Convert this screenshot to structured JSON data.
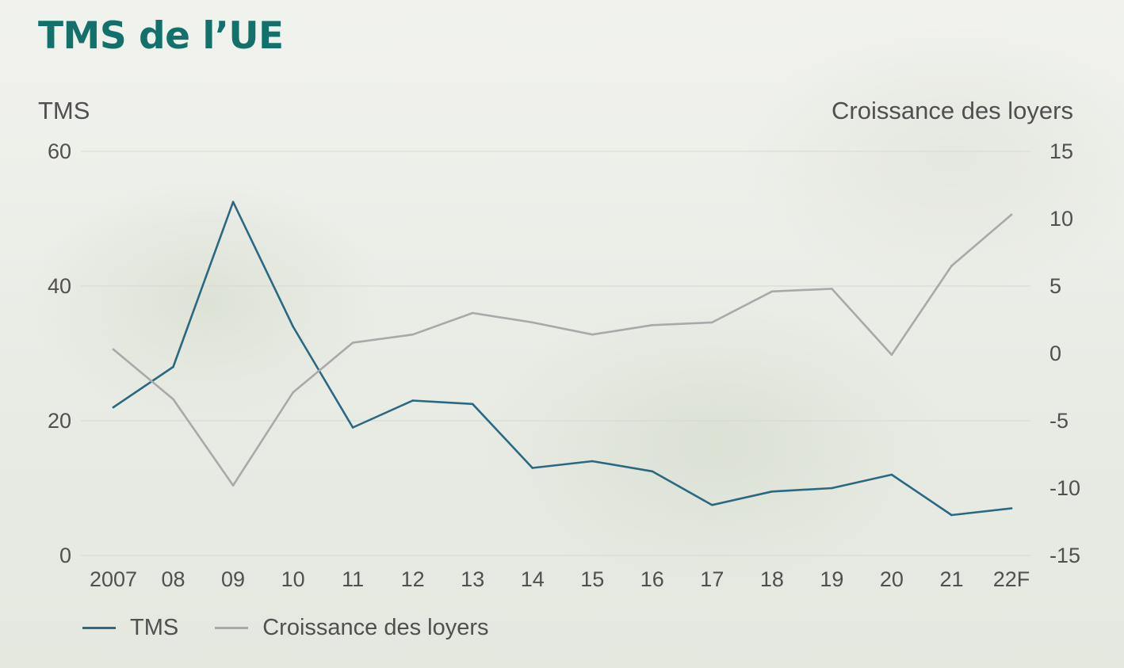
{
  "title": "TMS de l’UE",
  "colors": {
    "tms": "#2b6982",
    "rent": "#a9a9a9",
    "title": "#13716b",
    "grid": "#d6d8d2",
    "text": "#505050"
  },
  "chart_data": {
    "type": "line",
    "title": "TMS de l’UE",
    "categories": [
      "2007",
      "08",
      "09",
      "10",
      "11",
      "12",
      "13",
      "14",
      "15",
      "16",
      "17",
      "18",
      "19",
      "20",
      "21",
      "22F"
    ],
    "left_axis": {
      "label": "TMS",
      "range": [
        0,
        60
      ],
      "ticks": [
        "0",
        "20",
        "40",
        "60"
      ]
    },
    "right_axis": {
      "label": "Croissance des loyers",
      "range": [
        -15,
        15
      ],
      "ticks": [
        "-15",
        "-10",
        "-5",
        "0",
        "5",
        "10",
        "15"
      ]
    },
    "grid": true,
    "legend_placement": "bottom-left",
    "series": [
      {
        "name": "TMS",
        "axis": "left",
        "values": [
          22,
          28,
          52.5,
          34,
          19,
          23,
          22.5,
          13,
          14,
          12.5,
          7.5,
          9.5,
          10,
          12,
          6,
          7
        ]
      },
      {
        "name": "Croissance des loyers",
        "axis": "right",
        "values": [
          0.3,
          -3.4,
          -9.8,
          -2.9,
          0.8,
          1.4,
          3.0,
          2.3,
          1.4,
          2.1,
          2.3,
          4.6,
          4.8,
          -0.1,
          6.5,
          10.3
        ]
      }
    ]
  }
}
